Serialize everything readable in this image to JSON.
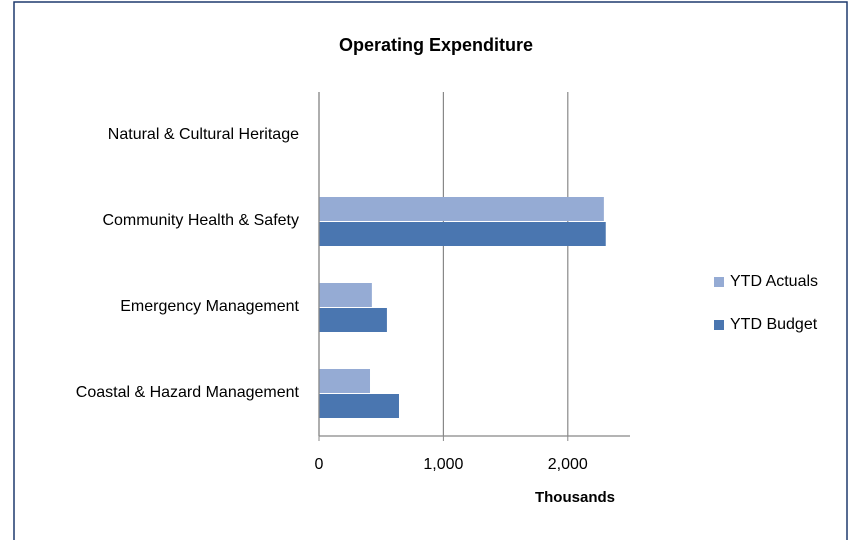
{
  "chart_data": {
    "type": "bar",
    "orientation": "horizontal",
    "title": "Operating Expenditure",
    "x_label": "Thousands",
    "categories": [
      "Natural & Cultural Heritage",
      "Community Health & Safety",
      "Emergency Management",
      "Coastal & Hazard Management"
    ],
    "series": [
      {
        "name": "YTD Actuals",
        "color": "#95abd4",
        "values": [
          0,
          2290,
          425,
          410
        ]
      },
      {
        "name": "YTD Budget",
        "color": "#4a76b0",
        "values": [
          0,
          2305,
          546,
          643
        ]
      }
    ],
    "xlim": [
      0,
      2500
    ],
    "xticks": [
      0,
      {
        "value": 1000,
        "label": "1,000"
      },
      {
        "value": 2000,
        "label": "2,000"
      }
    ],
    "grid": true,
    "legend": "right"
  }
}
